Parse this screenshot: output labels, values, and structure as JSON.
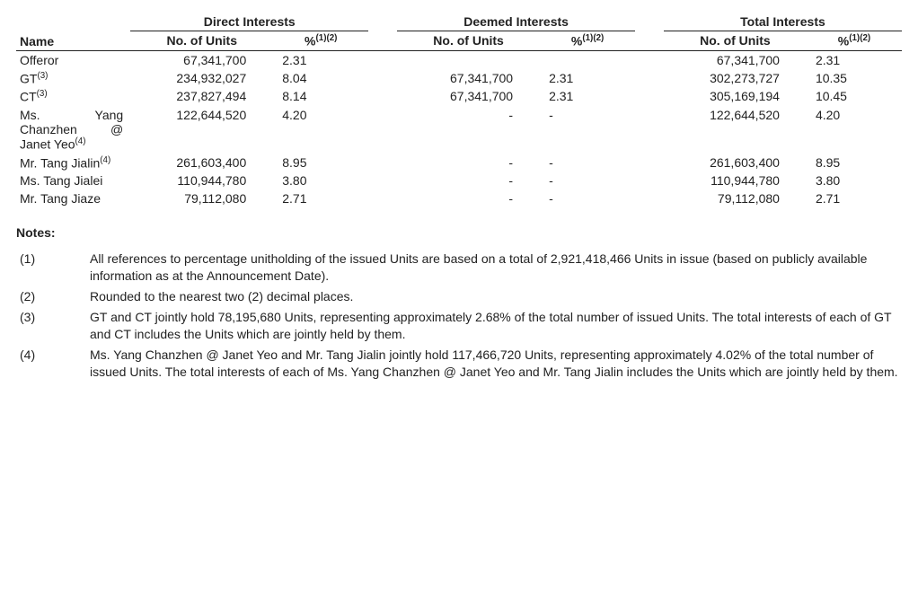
{
  "headers": {
    "name": "Name",
    "direct": "Direct Interests",
    "deemed": "Deemed Interests",
    "total": "Total Interests",
    "units": "No. of Units",
    "pct_prefix": "%",
    "pct_sup": "(1)(2)"
  },
  "rows": [
    {
      "name": "Offeror",
      "sup": "",
      "d_units": "67,341,700",
      "d_pct": "2.31",
      "m_units": "",
      "m_pct": "",
      "t_units": "67,341,700",
      "t_pct": "2.31"
    },
    {
      "name": "GT",
      "sup": "(3)",
      "d_units": "234,932,027",
      "d_pct": "8.04",
      "m_units": "67,341,700",
      "m_pct": "2.31",
      "t_units": "302,273,727",
      "t_pct": "10.35"
    },
    {
      "name": "CT",
      "sup": "(3)",
      "d_units": "237,827,494",
      "d_pct": "8.14",
      "m_units": "67,341,700",
      "m_pct": "2.31",
      "t_units": "305,169,194",
      "t_pct": "10.45"
    },
    {
      "name": "Ms. Yang Chanzhen @ Janet Yeo",
      "sup": "(4)",
      "d_units": "122,644,520",
      "d_pct": "4.20",
      "m_units": "-",
      "m_pct": "-",
      "t_units": "122,644,520",
      "t_pct": "4.20"
    },
    {
      "name": "Mr. Tang Jialin",
      "sup": "(4)",
      "d_units": "261,603,400",
      "d_pct": "8.95",
      "m_units": "-",
      "m_pct": "-",
      "t_units": "261,603,400",
      "t_pct": "8.95"
    },
    {
      "name": "Ms. Tang Jialei",
      "sup": "",
      "d_units": "110,944,780",
      "d_pct": "3.80",
      "m_units": "-",
      "m_pct": "-",
      "t_units": "110,944,780",
      "t_pct": "3.80"
    },
    {
      "name": "Mr. Tang Jiaze",
      "sup": "",
      "d_units": "79,112,080",
      "d_pct": "2.71",
      "m_units": "-",
      "m_pct": "-",
      "t_units": "79,112,080",
      "t_pct": "2.71"
    }
  ],
  "notes_label": "Notes:",
  "notes": [
    {
      "num": "(1)",
      "text": "All references to percentage unitholding of the issued Units are based on a total of 2,921,418,466 Units in issue (based on publicly available information as at the Announcement Date)."
    },
    {
      "num": "(2)",
      "text": "Rounded to the nearest two (2) decimal places."
    },
    {
      "num": "(3)",
      "text": "GT and CT jointly hold 78,195,680 Units, representing approximately 2.68% of the total number of issued Units. The total interests of each of GT and CT includes the Units which are jointly held by them."
    },
    {
      "num": "(4)",
      "text": "Ms. Yang Chanzhen @ Janet Yeo and Mr. Tang Jialin jointly hold 117,466,720 Units, representing approximately 4.02% of the total number of issued Units. The total interests of each of Ms. Yang Chanzhen @ Janet Yeo and Mr. Tang Jialin includes the Units which are jointly held by them."
    }
  ]
}
